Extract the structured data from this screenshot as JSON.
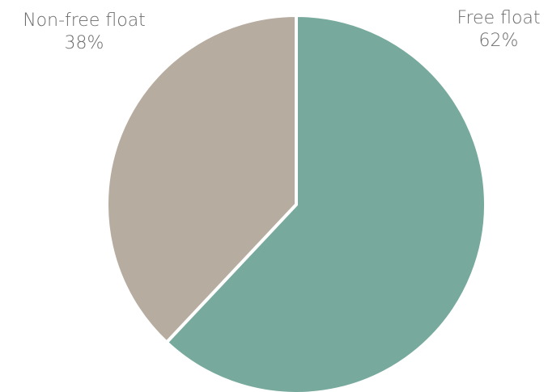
{
  "chart_data": {
    "type": "pie",
    "slices": [
      {
        "label": "Free float",
        "value": 62,
        "percent_label": "62%",
        "color": "#77a99c"
      },
      {
        "label": "Non-free float",
        "value": 38,
        "percent_label": "38%",
        "color": "#b6ac9f"
      }
    ],
    "legend": "none",
    "labels_placement": "outside"
  }
}
